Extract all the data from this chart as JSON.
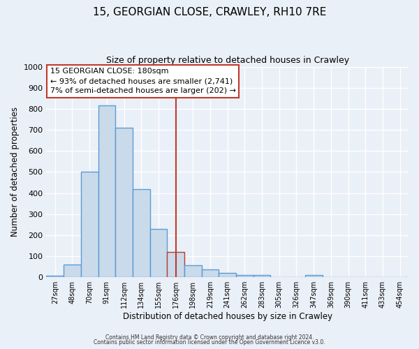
{
  "title": "15, GEORGIAN CLOSE, CRAWLEY, RH10 7RE",
  "subtitle": "Size of property relative to detached houses in Crawley",
  "xlabel": "Distribution of detached houses by size in Crawley",
  "ylabel": "Number of detached properties",
  "categories": [
    "27sqm",
    "48sqm",
    "70sqm",
    "91sqm",
    "112sqm",
    "134sqm",
    "155sqm",
    "176sqm",
    "198sqm",
    "219sqm",
    "241sqm",
    "262sqm",
    "283sqm",
    "305sqm",
    "326sqm",
    "347sqm",
    "369sqm",
    "390sqm",
    "411sqm",
    "433sqm",
    "454sqm"
  ],
  "values": [
    8,
    60,
    500,
    815,
    710,
    420,
    230,
    120,
    58,
    36,
    20,
    12,
    10,
    0,
    0,
    10,
    0,
    0,
    0,
    0,
    0
  ],
  "bar_color": "#c9daea",
  "bar_edge_color": "#5b9bd5",
  "highlight_index": 7,
  "highlight_edge_color": "#c0392b",
  "vline_color": "#c0392b",
  "annotation_text": "15 GEORGIAN CLOSE: 180sqm\n← 93% of detached houses are smaller (2,741)\n7% of semi-detached houses are larger (202) →",
  "annotation_box_color": "#ffffff",
  "annotation_box_edge": "#c0392b",
  "ylim": [
    0,
    1000
  ],
  "footer1": "Contains HM Land Registry data © Crown copyright and database right 2024.",
  "footer2": "Contains public sector information licensed under the Open Government Licence v3.0.",
  "bg_color": "#eaf0f7",
  "grid_color": "#ffffff",
  "title_fontsize": 11,
  "subtitle_fontsize": 9,
  "bar_width": 1.0
}
